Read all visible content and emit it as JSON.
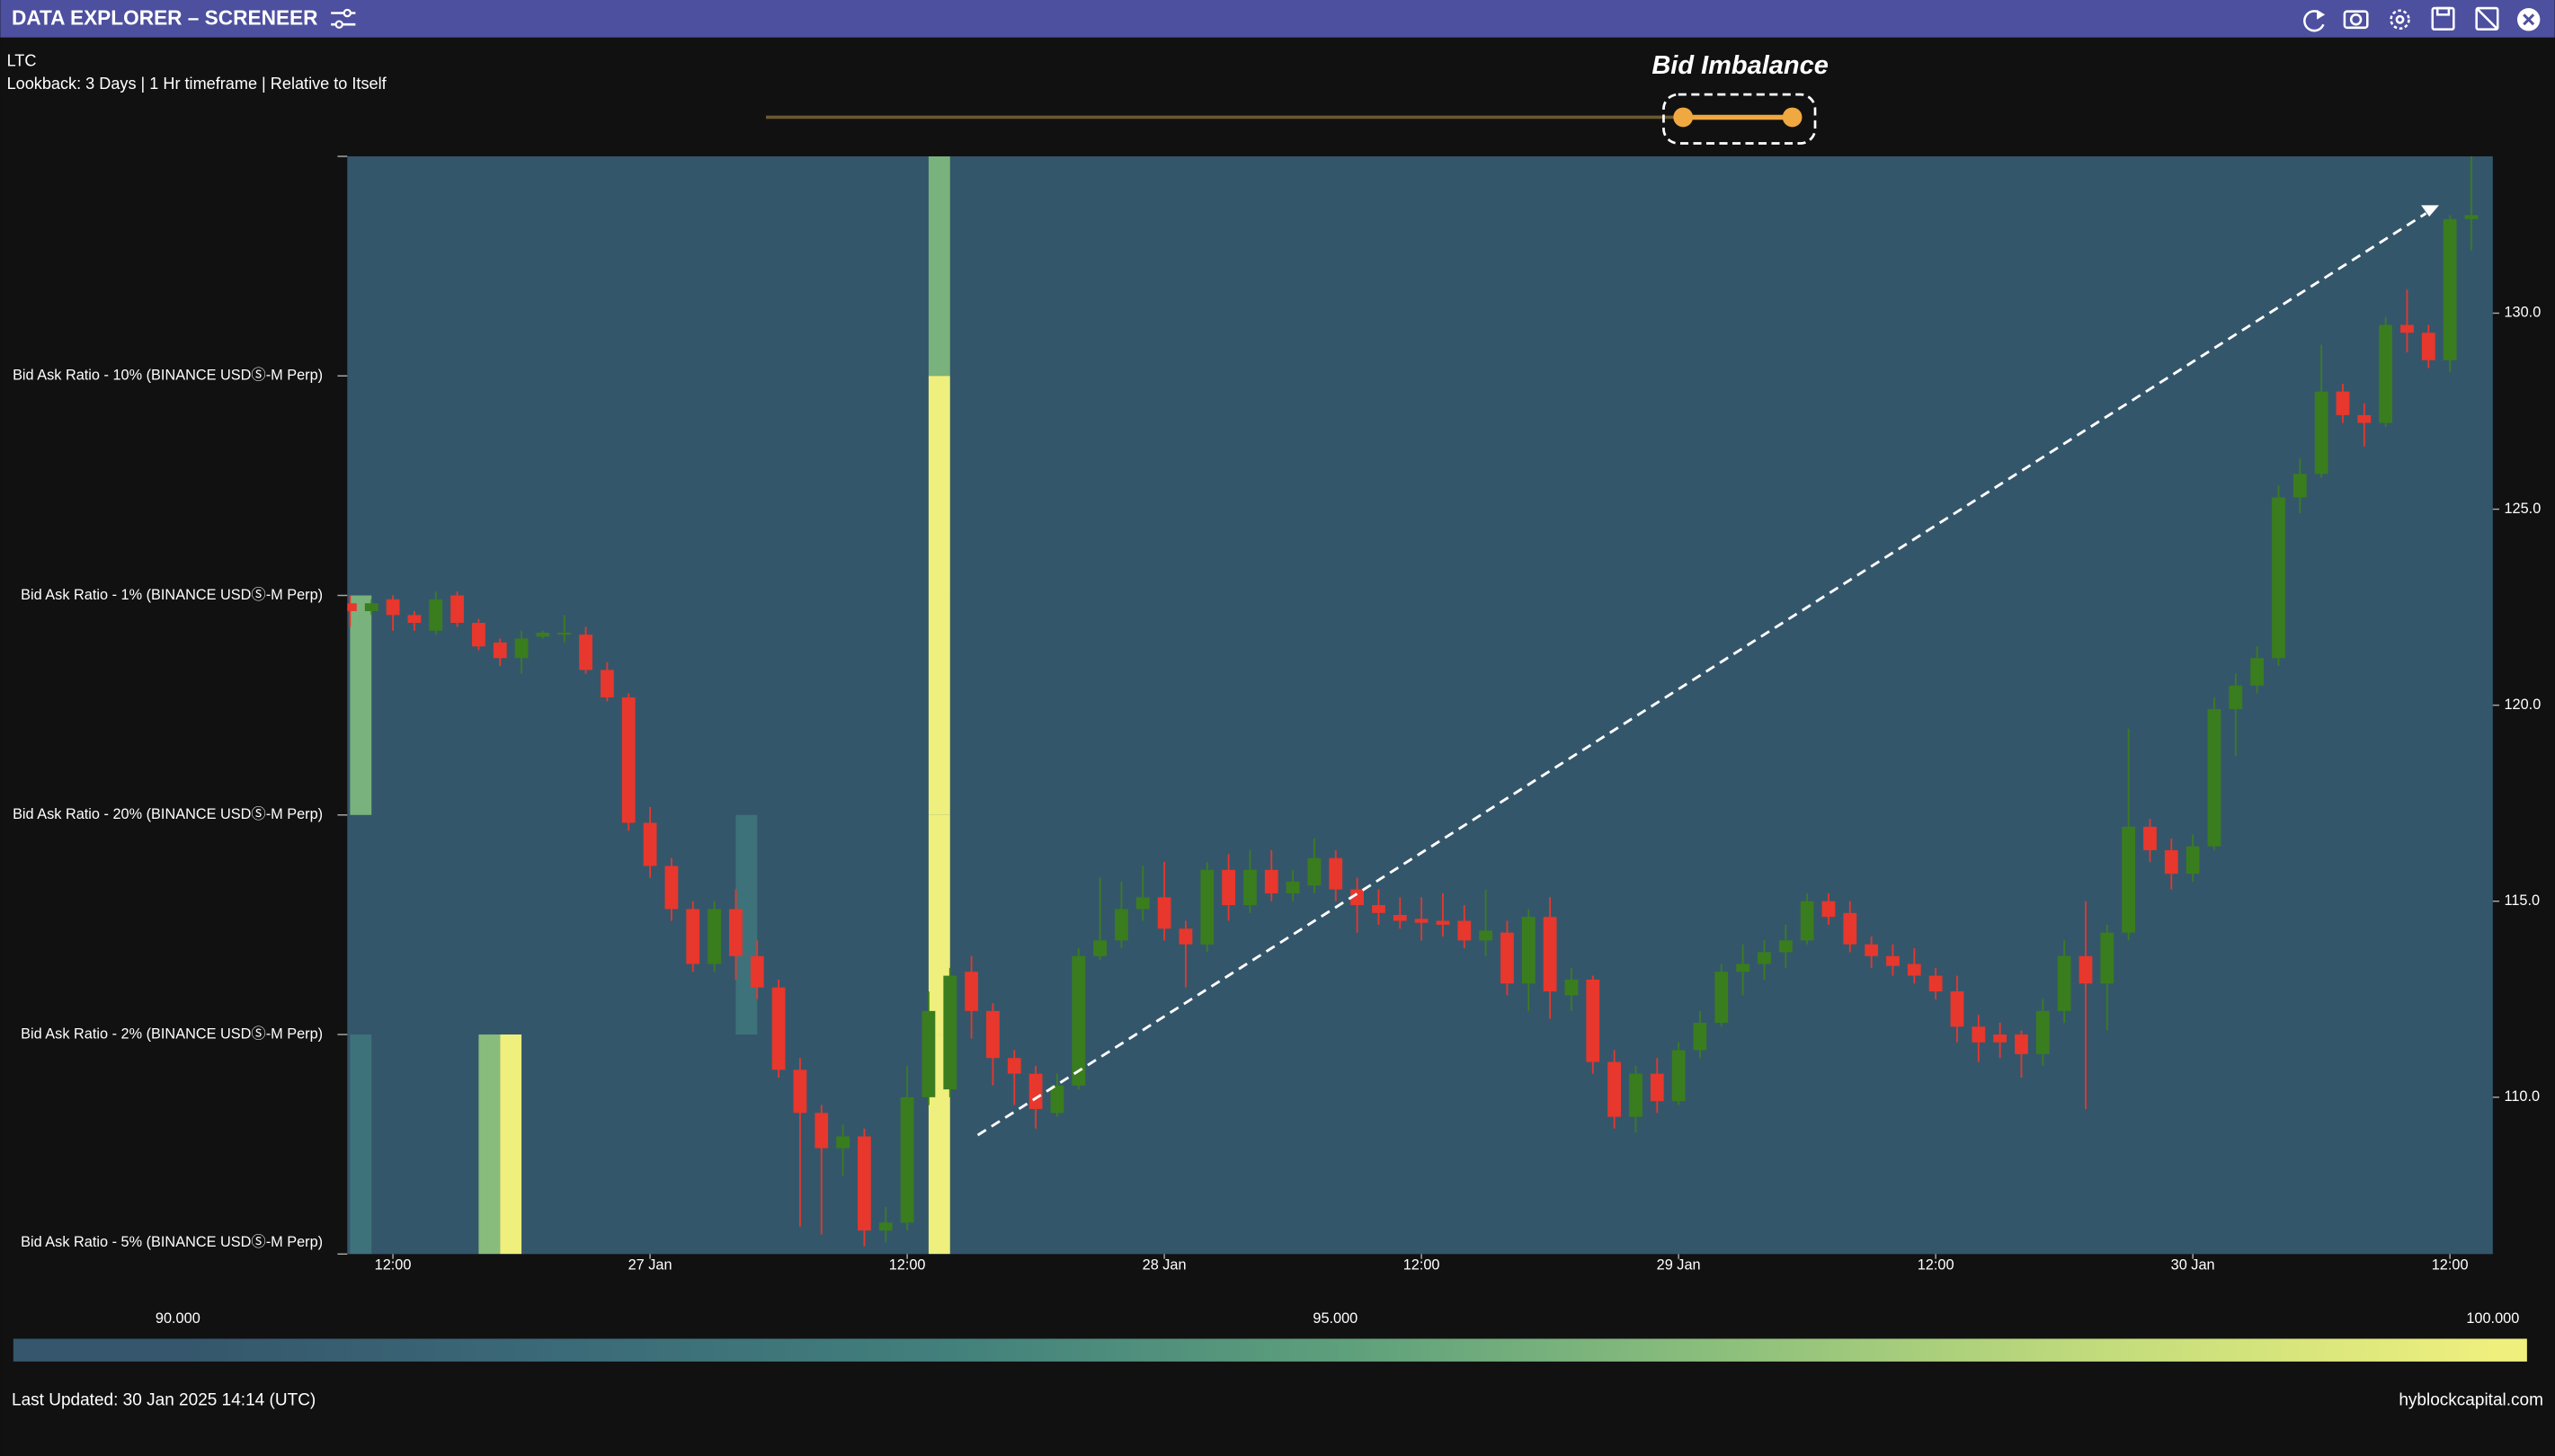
{
  "app": {
    "title": "DATA EXPLORER – SCRENEER",
    "last_updated": "Last Updated: 30 Jan 2025 14:14 (UTC)",
    "site": "hyblockcapital.com"
  },
  "chart_data": {
    "type": "candlestick",
    "title": "Bid Imbalance",
    "symbol": "LTC",
    "subtitle": "Lookback: 3 Days | 1 Hr timeframe | Relative to Itself",
    "up_color": "#3a7d1e",
    "down_color": "#e8372c",
    "candles": [
      [
        122.6,
        122.8,
        122.0,
        122.4
      ],
      [
        122.4,
        122.7,
        122.3,
        122.6
      ],
      [
        122.7,
        122.8,
        121.9,
        122.3
      ],
      [
        122.3,
        122.4,
        121.9,
        122.1
      ],
      [
        121.9,
        122.9,
        121.8,
        122.7
      ],
      [
        122.8,
        122.9,
        122.0,
        122.1
      ],
      [
        122.1,
        122.2,
        121.4,
        121.5
      ],
      [
        121.6,
        121.7,
        121.0,
        121.2
      ],
      [
        121.2,
        121.9,
        120.8,
        121.7
      ],
      [
        121.75,
        121.9,
        121.7,
        121.85
      ],
      [
        121.8,
        122.3,
        121.6,
        121.85
      ],
      [
        121.8,
        122.0,
        120.8,
        120.9
      ],
      [
        120.9,
        121.1,
        120.1,
        120.2
      ],
      [
        120.2,
        120.3,
        116.8,
        117.0
      ],
      [
        117.0,
        117.4,
        115.6,
        115.9
      ],
      [
        115.9,
        116.1,
        114.5,
        114.8
      ],
      [
        114.8,
        115.0,
        113.2,
        113.4
      ],
      [
        113.4,
        115.0,
        113.2,
        114.8
      ],
      [
        114.8,
        115.3,
        113.0,
        113.6
      ],
      [
        113.6,
        114.0,
        112.5,
        112.8
      ],
      [
        112.8,
        113.0,
        110.5,
        110.7
      ],
      [
        110.7,
        111.0,
        106.7,
        109.6
      ],
      [
        109.6,
        109.8,
        106.5,
        108.7
      ],
      [
        108.7,
        109.3,
        108.0,
        109.0
      ],
      [
        109.0,
        109.2,
        106.2,
        106.6
      ],
      [
        106.6,
        107.2,
        106.3,
        106.8
      ],
      [
        106.8,
        110.8,
        106.6,
        110.0
      ],
      [
        110.0,
        112.7,
        109.8,
        112.2
      ],
      [
        110.2,
        113.3,
        110.0,
        113.1
      ],
      [
        113.2,
        113.6,
        111.5,
        112.2
      ],
      [
        112.2,
        112.4,
        110.3,
        111.0
      ],
      [
        111.0,
        111.2,
        109.8,
        110.6
      ],
      [
        110.6,
        110.8,
        109.2,
        109.7
      ],
      [
        109.6,
        110.6,
        109.5,
        110.3
      ],
      [
        110.3,
        113.8,
        110.2,
        113.6
      ],
      [
        113.6,
        115.6,
        113.5,
        114.0
      ],
      [
        114.0,
        115.5,
        113.8,
        114.8
      ],
      [
        114.8,
        115.9,
        114.5,
        115.1
      ],
      [
        115.1,
        116.0,
        114.0,
        114.3
      ],
      [
        114.3,
        114.5,
        112.8,
        113.9
      ],
      [
        113.9,
        116.0,
        113.7,
        115.8
      ],
      [
        115.8,
        116.2,
        114.5,
        114.9
      ],
      [
        114.9,
        116.3,
        114.7,
        115.8
      ],
      [
        115.8,
        116.3,
        115.0,
        115.2
      ],
      [
        115.2,
        115.8,
        115.0,
        115.5
      ],
      [
        115.4,
        116.6,
        115.2,
        116.1
      ],
      [
        116.1,
        116.3,
        115.0,
        115.3
      ],
      [
        115.3,
        115.6,
        114.2,
        114.9
      ],
      [
        114.9,
        115.3,
        114.4,
        114.7
      ],
      [
        114.65,
        115.1,
        114.3,
        114.5
      ],
      [
        114.55,
        115.1,
        114.0,
        114.45
      ],
      [
        114.5,
        115.2,
        114.1,
        114.4
      ],
      [
        114.5,
        114.9,
        113.8,
        114.0
      ],
      [
        114.0,
        115.3,
        113.6,
        114.25
      ],
      [
        114.2,
        114.5,
        112.6,
        112.9
      ],
      [
        112.9,
        114.8,
        112.2,
        114.6
      ],
      [
        114.6,
        115.1,
        112.0,
        112.7
      ],
      [
        112.6,
        113.3,
        112.2,
        113.0
      ],
      [
        113.0,
        113.1,
        110.6,
        110.9
      ],
      [
        110.9,
        111.2,
        109.2,
        109.5
      ],
      [
        109.5,
        110.8,
        109.1,
        110.6
      ],
      [
        110.6,
        111.0,
        109.6,
        109.9
      ],
      [
        109.9,
        111.4,
        109.8,
        111.2
      ],
      [
        111.2,
        112.2,
        111.0,
        111.9
      ],
      [
        111.9,
        113.4,
        111.8,
        113.2
      ],
      [
        113.2,
        113.9,
        112.6,
        113.4
      ],
      [
        113.4,
        114.0,
        113.0,
        113.7
      ],
      [
        113.7,
        114.4,
        113.3,
        114.0
      ],
      [
        114.0,
        115.2,
        113.9,
        115.0
      ],
      [
        115.0,
        115.2,
        114.4,
        114.6
      ],
      [
        114.7,
        115.0,
        113.7,
        113.9
      ],
      [
        113.9,
        114.1,
        113.3,
        113.6
      ],
      [
        113.6,
        113.9,
        113.1,
        113.35
      ],
      [
        113.4,
        113.8,
        112.9,
        113.1
      ],
      [
        113.1,
        113.3,
        112.5,
        112.7
      ],
      [
        112.7,
        113.1,
        111.4,
        111.8
      ],
      [
        111.8,
        112.1,
        110.9,
        111.4
      ],
      [
        111.6,
        111.9,
        111.0,
        111.4
      ],
      [
        111.6,
        111.7,
        110.5,
        111.1
      ],
      [
        111.1,
        112.5,
        110.8,
        112.2
      ],
      [
        112.2,
        114.0,
        111.9,
        113.6
      ],
      [
        113.6,
        115.0,
        109.7,
        112.9
      ],
      [
        112.9,
        114.4,
        111.7,
        114.2
      ],
      [
        114.2,
        119.4,
        114.0,
        116.9
      ],
      [
        116.9,
        117.1,
        116.0,
        116.3
      ],
      [
        116.3,
        116.6,
        115.3,
        115.7
      ],
      [
        115.7,
        116.7,
        115.5,
        116.4
      ],
      [
        116.4,
        120.2,
        116.3,
        119.9
      ],
      [
        119.9,
        120.8,
        118.7,
        120.5
      ],
      [
        120.5,
        121.5,
        120.3,
        121.2
      ],
      [
        121.2,
        125.6,
        121.0,
        125.3
      ],
      [
        125.3,
        126.3,
        124.9,
        125.9
      ],
      [
        125.9,
        129.2,
        125.8,
        128.0
      ],
      [
        128.0,
        128.2,
        127.2,
        127.4
      ],
      [
        127.4,
        127.7,
        126.6,
        127.2
      ],
      [
        127.2,
        129.9,
        127.1,
        129.7
      ],
      [
        129.7,
        130.6,
        129.0,
        129.5
      ],
      [
        129.5,
        129.7,
        128.6,
        128.8
      ],
      [
        128.8,
        132.5,
        128.5,
        132.4
      ],
      [
        132.4,
        134.0,
        131.6,
        132.5
      ]
    ],
    "xlim": [
      -0.13,
      100
    ],
    "xticks": [
      {
        "value": 2,
        "label": "12:00"
      },
      {
        "value": 14,
        "label": "27 Jan"
      },
      {
        "value": 26,
        "label": "12:00"
      },
      {
        "value": 38,
        "label": "28 Jan"
      },
      {
        "value": 50,
        "label": "12:00"
      },
      {
        "value": 62,
        "label": "29 Jan"
      },
      {
        "value": 74,
        "label": "12:00"
      },
      {
        "value": 86,
        "label": "30 Jan"
      },
      {
        "value": 98,
        "label": "12:00"
      }
    ],
    "ylim": [
      106,
      134
    ],
    "yticks": [
      {
        "value": 110,
        "label": "110.0"
      },
      {
        "value": 115,
        "label": "115.0"
      },
      {
        "value": 120,
        "label": "120.0"
      },
      {
        "value": 125,
        "label": "125.0"
      },
      {
        "value": 130,
        "label": "130.0"
      }
    ],
    "heatmap": {
      "rows": [
        "Bid Ask Ratio - 10% (BINANCE USDⓈ-M Perp)",
        "Bid Ask Ratio - 1% (BINANCE USDⓈ-M Perp)",
        "Bid Ask Ratio - 20% (BINANCE USDⓈ-M Perp)",
        "Bid Ask Ratio - 2% (BINANCE USDⓈ-M Perp)",
        "Bid Ask Ratio - 5% (BINANCE USDⓈ-M Perp)"
      ],
      "cells": [
        [
          0,
          2,
          96
        ],
        [
          0,
          4,
          92.3
        ],
        [
          6,
          4,
          96.5
        ],
        [
          7,
          4,
          100
        ],
        [
          18,
          3,
          92.3
        ],
        [
          27,
          0,
          96
        ],
        [
          27,
          1,
          100
        ],
        [
          27,
          2,
          100
        ],
        [
          27,
          3,
          100
        ],
        [
          27,
          4,
          100
        ]
      ],
      "colorscale": [
        "#35566c",
        "#3b6a78",
        "#42807c",
        "#5d9f7c",
        "#8cbf7c",
        "#c3dc7c",
        "#eeef7d"
      ],
      "zlim": [
        90,
        100
      ],
      "zticks": [
        {
          "value": 90,
          "label": "90.000"
        },
        {
          "value": 95,
          "label": "95.000"
        },
        {
          "value": 100,
          "label": "100.000"
        }
      ]
    }
  }
}
